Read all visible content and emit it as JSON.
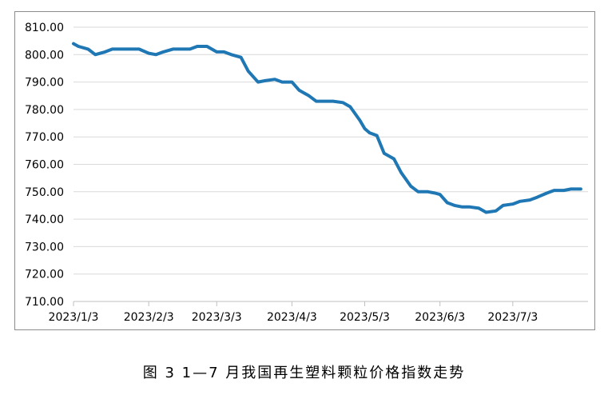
{
  "chart_data": {
    "type": "line",
    "title": "",
    "xlabel": "",
    "ylabel": "",
    "ylim": [
      710,
      810
    ],
    "y_ticks": [
      "710.00",
      "720.00",
      "730.00",
      "740.00",
      "750.00",
      "760.00",
      "770.00",
      "780.00",
      "790.00",
      "800.00",
      "810.00"
    ],
    "x_ticks": [
      "2023/1/3",
      "2023/2/3",
      "2023/3/3",
      "2023/4/3",
      "2023/5/3",
      "2023/6/3",
      "2023/7/3"
    ],
    "grid": "horizontal",
    "legend": "none",
    "line_color": "#1f77b4",
    "series": [
      {
        "x": [
          "2023/1/3",
          "2023/1/5",
          "2023/1/9",
          "2023/1/12",
          "2023/1/16",
          "2023/1/19",
          "2023/1/23",
          "2023/1/27",
          "2023/1/30",
          "2023/2/3",
          "2023/2/6",
          "2023/2/9",
          "2023/2/13",
          "2023/2/16",
          "2023/2/20",
          "2023/2/23",
          "2023/2/27",
          "2023/3/3",
          "2023/3/6",
          "2023/3/9",
          "2023/3/13",
          "2023/3/16",
          "2023/3/20",
          "2023/3/23",
          "2023/3/27",
          "2023/3/30",
          "2023/4/3",
          "2023/4/6",
          "2023/4/10",
          "2023/4/13",
          "2023/4/17",
          "2023/4/20",
          "2023/4/24",
          "2023/4/27",
          "2023/5/1",
          "2023/5/3",
          "2023/5/5",
          "2023/5/8",
          "2023/5/11",
          "2023/5/15",
          "2023/5/18",
          "2023/5/22",
          "2023/5/25",
          "2023/5/29",
          "2023/6/1",
          "2023/6/3",
          "2023/6/6",
          "2023/6/9",
          "2023/6/12",
          "2023/6/15",
          "2023/6/19",
          "2023/6/22",
          "2023/6/26",
          "2023/6/29",
          "2023/7/3",
          "2023/7/6",
          "2023/7/10",
          "2023/7/13",
          "2023/7/17",
          "2023/7/20",
          "2023/7/24",
          "2023/7/27",
          "2023/7/31"
        ],
        "values": [
          804,
          803,
          802,
          800,
          801,
          802,
          802,
          802,
          802,
          800.5,
          800,
          801,
          802,
          802,
          802,
          803,
          803,
          801,
          801,
          800,
          799,
          794,
          790,
          790.5,
          791,
          790,
          790,
          787,
          785,
          783,
          783,
          783,
          782.5,
          781,
          776,
          773,
          771.5,
          770.5,
          764,
          762,
          757,
          752,
          750,
          750,
          749.5,
          749,
          746,
          745,
          744.5,
          744.5,
          744,
          742.5,
          743,
          745,
          745.5,
          746.5,
          747,
          748,
          749.5,
          750.5,
          750.5,
          751,
          751
        ]
      }
    ]
  },
  "caption": "图 3  1—7 月我国再生塑料颗粒价格指数走势"
}
